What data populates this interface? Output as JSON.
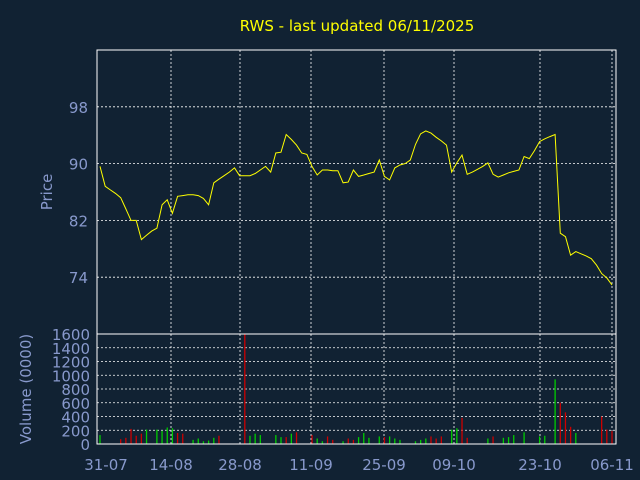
{
  "title": "RWS - last updated 06/11/2025",
  "colors": {
    "background": "#112233",
    "title": "#ffff00",
    "price_line": "#ffff00",
    "axis_text": "#8899cc",
    "frame": "#ffffff",
    "grid": "#ffffff",
    "volume_up": "#00cc00",
    "volume_down": "#cc0000"
  },
  "chart_data": [
    {
      "type": "line",
      "ylabel": "Price",
      "ylim": [
        66,
        106
      ],
      "yticks": [
        74,
        82,
        90,
        98
      ],
      "grid": true,
      "series": [
        {
          "values": [
            89.6,
            86.8,
            86.3,
            85.8,
            85.2,
            83.6,
            82,
            82,
            79.3,
            79.9,
            80.5,
            80.9,
            84.2,
            84.9,
            83,
            85.4,
            85.5,
            85.6,
            85.6,
            85.5,
            85.1,
            84.2,
            87.3,
            87.8,
            88.3,
            88.8,
            89.4,
            88.3,
            88.3,
            88.3,
            88.6,
            89.1,
            89.6,
            88.8,
            91.5,
            91.6,
            94.1,
            93.4,
            92.6,
            91.5,
            91.3,
            89.6,
            88.4,
            89.1,
            89.1,
            89,
            89,
            87.3,
            87.4,
            89.1,
            88.2,
            88.4,
            88.6,
            88.8,
            90.5,
            88.2,
            87.7,
            89.4,
            89.8,
            90,
            90.5,
            92.7,
            94.2,
            94.6,
            94.3,
            93.7,
            93.2,
            92.6,
            88.8,
            90.1,
            91.2,
            88.5,
            88.8,
            89.2,
            89.6,
            90.1,
            88.5,
            88.1,
            88.4,
            88.7,
            88.9,
            89.1,
            91,
            90.7,
            91.8,
            93.1,
            93.5,
            93.8,
            94.1,
            80.2,
            79.7,
            77.1,
            77.6,
            77.3,
            77,
            76.6,
            75.7,
            74.5,
            73.9,
            72.9
          ]
        }
      ]
    },
    {
      "type": "bar",
      "ylabel": "Volume (0000)",
      "ylim": [
        0,
        1600
      ],
      "yticks": [
        0,
        200,
        400,
        600,
        800,
        1000,
        1200,
        1400,
        1600
      ],
      "x_tick_labels": [
        "31-07",
        "14-08",
        "28-08",
        "11-09",
        "25-09",
        "09-10",
        "23-10",
        "06-11"
      ],
      "grid": true,
      "series": [
        {
          "values": [
            130,
            0,
            0,
            0,
            70,
            90,
            220,
            120,
            150,
            210,
            0,
            210,
            190,
            240,
            230,
            160,
            150,
            0,
            60,
            80,
            40,
            50,
            90,
            120,
            0,
            0,
            0,
            0,
            1600,
            120,
            150,
            130,
            0,
            0,
            130,
            100,
            100,
            150,
            170,
            0,
            0,
            130,
            80,
            40,
            110,
            60,
            0,
            40,
            80,
            60,
            100,
            160,
            90,
            0,
            110,
            100,
            110,
            80,
            60,
            0,
            0,
            40,
            60,
            80,
            110,
            80,
            110,
            0,
            210,
            230,
            380,
            90,
            0,
            0,
            0,
            80,
            110,
            0,
            90,
            100,
            130,
            0,
            170,
            0,
            0,
            110,
            120,
            0,
            940,
            600,
            460,
            250,
            160,
            0,
            0,
            0,
            0,
            400,
            210,
            190
          ],
          "direction": [
            "up",
            "up",
            "up",
            "up",
            "down",
            "down",
            "down",
            "down",
            "down",
            "up",
            "up",
            "up",
            "up",
            "up",
            "up",
            "down",
            "down",
            "up",
            "up",
            "up",
            "up",
            "up",
            "up",
            "down",
            "up",
            "up",
            "up",
            "down",
            "down",
            "up",
            "up",
            "up",
            "up",
            "up",
            "up",
            "up",
            "down",
            "up",
            "down",
            "down",
            "down",
            "down",
            "up",
            "up",
            "down",
            "down",
            "up",
            "up",
            "down",
            "down",
            "up",
            "up",
            "up",
            "up",
            "up",
            "down",
            "up",
            "up",
            "up",
            "up",
            "up",
            "up",
            "up",
            "up",
            "down",
            "down",
            "down",
            "down",
            "up",
            "up",
            "down",
            "down",
            "up",
            "up",
            "up",
            "up",
            "down",
            "down",
            "up",
            "up",
            "up",
            "up",
            "up",
            "up",
            "down",
            "up",
            "up",
            "up",
            "up",
            "down",
            "down",
            "down",
            "up",
            "up",
            "down",
            "down",
            "down",
            "down",
            "down",
            "down"
          ]
        }
      ]
    }
  ]
}
